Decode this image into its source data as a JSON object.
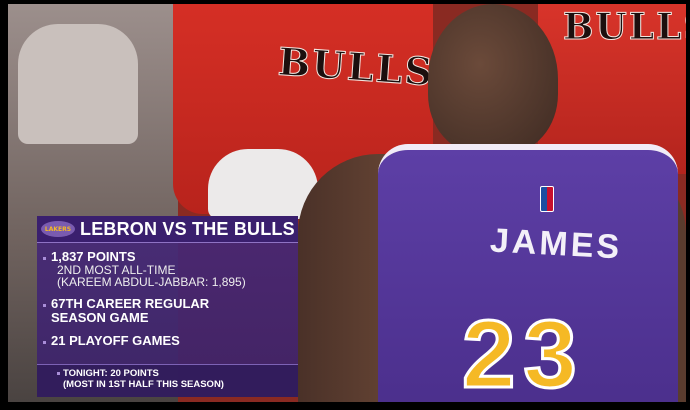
{
  "scene": {
    "jersey_background_text": "BULLS",
    "player_jersey_name": "JAMES",
    "player_jersey_number": "23"
  },
  "graphic": {
    "logo": "Lakers",
    "title": "LEBRON VS THE BULLS",
    "stats": [
      {
        "main": "1,837 POINTS",
        "sub1": "2ND MOST ALL-TIME",
        "sub2": "(KAREEM ABDUL-JABBAR: 1,895)"
      },
      {
        "main1": "67TH CAREER REGULAR",
        "main2": "SEASON GAME"
      },
      {
        "main": "21 PLAYOFF GAMES"
      }
    ],
    "footer": {
      "line1": "TONIGHT: 20 POINTS",
      "line2": "(MOST IN 1ST HALF THIS SEASON)"
    }
  },
  "colors": {
    "lakers_purple": "#4b2f8c",
    "lakers_gold": "#f5b925",
    "bulls_red": "#ce2a22"
  }
}
